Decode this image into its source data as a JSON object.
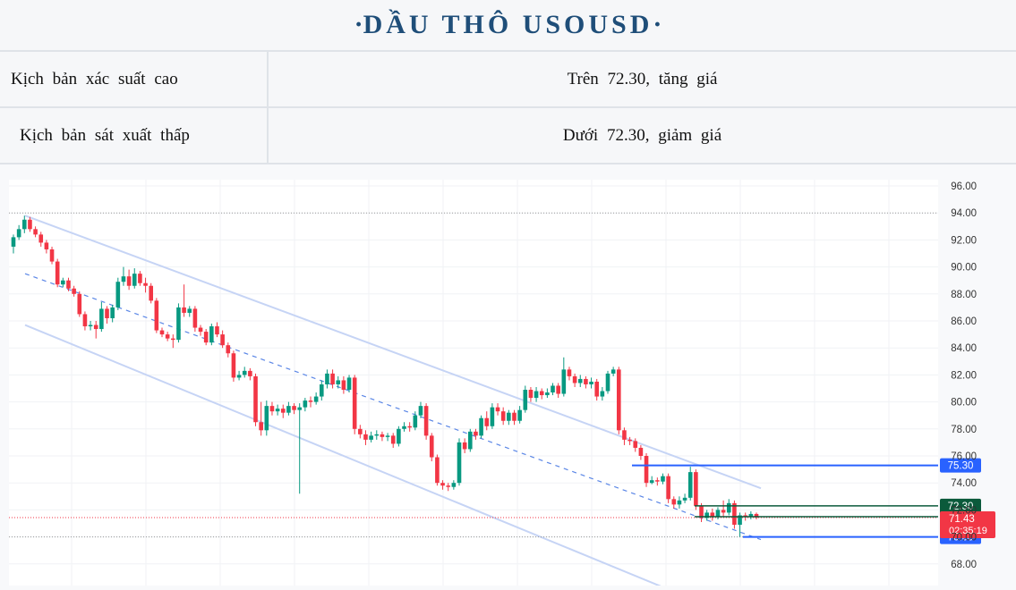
{
  "header": {
    "title": "DẦU THÔ USOUSD"
  },
  "scenarios": [
    {
      "label": "Kịch bản xác suất cao",
      "value": "Trên 72.30, tăng giá"
    },
    {
      "label": "Kịch bản sát xuất thấp",
      "value": "Dưới 72.30, giảm giá"
    }
  ],
  "chart_data": {
    "type": "candlestick",
    "ylim": [
      67,
      97
    ],
    "y_ticks": [
      "96.00",
      "94.00",
      "92.00",
      "90.00",
      "88.00",
      "86.00",
      "84.00",
      "82.00",
      "80.00",
      "78.00",
      "76.00",
      "74.00",
      "72.00",
      "70.00",
      "68.00"
    ],
    "candles": [
      [
        91.5,
        92.2,
        91.0,
        92.4
      ],
      [
        92.2,
        92.8,
        92.0,
        93.1
      ],
      [
        92.8,
        93.5,
        92.5,
        93.8
      ],
      [
        93.5,
        92.8,
        92.6,
        93.7
      ],
      [
        92.8,
        92.4,
        92.2,
        93.0
      ],
      [
        92.4,
        91.8,
        91.5,
        92.6
      ],
      [
        91.8,
        91.3,
        91.0,
        92.0
      ],
      [
        91.3,
        90.4,
        90.2,
        91.5
      ],
      [
        90.4,
        88.7,
        88.5,
        90.6
      ],
      [
        88.7,
        89.0,
        88.5,
        89.2
      ],
      [
        89.0,
        88.4,
        88.2,
        89.2
      ],
      [
        88.4,
        88.0,
        87.8,
        88.6
      ],
      [
        88.0,
        86.5,
        86.3,
        88.2
      ],
      [
        86.5,
        85.6,
        85.3,
        86.7
      ],
      [
        85.6,
        85.7,
        85.3,
        86.0
      ],
      [
        85.7,
        85.4,
        84.7,
        86.0
      ],
      [
        85.4,
        86.9,
        85.2,
        87.4
      ],
      [
        86.9,
        86.2,
        85.8,
        87.1
      ],
      [
        86.2,
        87.0,
        85.9,
        87.2
      ],
      [
        87.0,
        88.9,
        86.8,
        89.2
      ],
      [
        88.9,
        89.3,
        88.6,
        90.0
      ],
      [
        89.3,
        88.6,
        88.3,
        89.8
      ],
      [
        88.6,
        89.5,
        88.4,
        89.9
      ],
      [
        89.5,
        88.8,
        88.6,
        89.7
      ],
      [
        88.8,
        88.6,
        88.1,
        89.2
      ],
      [
        88.6,
        87.5,
        87.3,
        88.8
      ],
      [
        87.5,
        85.3,
        85.1,
        87.7
      ],
      [
        85.3,
        85.0,
        84.8,
        85.5
      ],
      [
        85.0,
        84.7,
        84.5,
        85.2
      ],
      [
        84.7,
        84.6,
        84.0,
        85.0
      ],
      [
        84.6,
        87.0,
        84.4,
        87.3
      ],
      [
        87.0,
        86.6,
        86.3,
        88.7
      ],
      [
        86.6,
        86.9,
        86.3,
        87.1
      ],
      [
        86.9,
        85.5,
        85.2,
        87.1
      ],
      [
        85.5,
        85.2,
        84.9,
        85.7
      ],
      [
        85.2,
        84.4,
        84.2,
        85.4
      ],
      [
        84.4,
        85.6,
        84.2,
        85.8
      ],
      [
        85.6,
        85.0,
        84.8,
        85.9
      ],
      [
        85.0,
        84.2,
        84.0,
        85.3
      ],
      [
        84.2,
        83.6,
        83.3,
        84.4
      ],
      [
        83.6,
        81.8,
        81.5,
        83.8
      ],
      [
        81.8,
        82.0,
        81.6,
        82.3
      ],
      [
        82.0,
        82.3,
        81.8,
        82.6
      ],
      [
        82.3,
        81.9,
        81.6,
        82.5
      ],
      [
        81.9,
        78.5,
        78.2,
        82.1
      ],
      [
        78.5,
        77.9,
        77.5,
        80.0
      ],
      [
        77.9,
        79.7,
        77.5,
        80.1
      ],
      [
        79.7,
        79.3,
        79.0,
        80.0
      ],
      [
        79.3,
        79.5,
        79.0,
        79.8
      ],
      [
        79.5,
        79.2,
        78.8,
        79.8
      ],
      [
        79.2,
        79.7,
        79.0,
        80.0
      ],
      [
        79.7,
        79.4,
        79.1,
        79.9
      ],
      [
        79.4,
        79.6,
        73.2,
        79.9
      ],
      [
        79.6,
        80.1,
        79.3,
        80.3
      ],
      [
        80.1,
        80.0,
        79.6,
        80.4
      ],
      [
        80.0,
        80.4,
        79.8,
        80.7
      ],
      [
        80.4,
        81.3,
        80.1,
        81.6
      ],
      [
        81.3,
        82.1,
        81.0,
        82.4
      ],
      [
        82.1,
        81.3,
        81.0,
        82.4
      ],
      [
        81.3,
        81.6,
        81.0,
        81.9
      ],
      [
        81.6,
        80.9,
        80.6,
        81.9
      ],
      [
        80.9,
        81.8,
        80.7,
        82.0
      ],
      [
        81.8,
        78.0,
        77.6,
        82.0
      ],
      [
        78.0,
        77.6,
        77.3,
        78.3
      ],
      [
        77.6,
        77.2,
        76.8,
        77.9
      ],
      [
        77.2,
        77.5,
        77.0,
        77.8
      ],
      [
        77.5,
        77.6,
        77.2,
        77.9
      ],
      [
        77.6,
        77.4,
        77.1,
        77.8
      ],
      [
        77.4,
        77.5,
        77.1,
        77.7
      ],
      [
        77.5,
        76.9,
        76.6,
        77.7
      ],
      [
        76.9,
        78.0,
        76.7,
        78.2
      ],
      [
        78.0,
        78.2,
        77.8,
        78.5
      ],
      [
        78.2,
        78.1,
        77.8,
        78.5
      ],
      [
        78.1,
        79.0,
        77.9,
        79.3
      ],
      [
        79.0,
        79.7,
        78.8,
        80.0
      ],
      [
        79.7,
        77.5,
        77.2,
        79.9
      ],
      [
        77.5,
        75.9,
        75.6,
        77.7
      ],
      [
        75.9,
        74.0,
        73.8,
        76.1
      ],
      [
        74.0,
        73.8,
        73.5,
        74.2
      ],
      [
        73.8,
        73.7,
        73.4,
        74.0
      ],
      [
        73.7,
        74.0,
        73.5,
        74.2
      ],
      [
        74.0,
        77.0,
        73.8,
        77.3
      ],
      [
        77.0,
        76.5,
        76.2,
        77.3
      ],
      [
        76.5,
        77.8,
        76.3,
        78.0
      ],
      [
        77.8,
        77.5,
        77.2,
        78.0
      ],
      [
        77.5,
        78.8,
        77.3,
        79.0
      ],
      [
        78.8,
        78.2,
        77.9,
        79.3
      ],
      [
        78.2,
        79.6,
        78.0,
        79.9
      ],
      [
        79.6,
        79.3,
        79.0,
        79.9
      ],
      [
        79.3,
        78.6,
        78.3,
        79.6
      ],
      [
        78.6,
        79.2,
        78.3,
        79.4
      ],
      [
        79.2,
        78.6,
        78.3,
        79.4
      ],
      [
        78.6,
        79.4,
        78.4,
        79.7
      ],
      [
        79.4,
        80.9,
        79.2,
        81.2
      ],
      [
        80.9,
        80.3,
        80.0,
        81.1
      ],
      [
        80.3,
        80.8,
        80.0,
        81.1
      ],
      [
        80.8,
        80.5,
        80.2,
        81.0
      ],
      [
        80.5,
        80.7,
        80.3,
        81.0
      ],
      [
        80.7,
        81.2,
        80.5,
        81.4
      ],
      [
        81.2,
        80.6,
        80.3,
        81.4
      ],
      [
        80.6,
        82.4,
        80.4,
        83.3
      ],
      [
        82.4,
        81.9,
        81.6,
        82.6
      ],
      [
        81.9,
        81.4,
        81.1,
        82.1
      ],
      [
        81.4,
        81.7,
        81.1,
        82.0
      ],
      [
        81.7,
        81.3,
        81.0,
        81.9
      ],
      [
        81.3,
        81.5,
        81.0,
        81.8
      ],
      [
        81.5,
        80.4,
        80.1,
        81.7
      ],
      [
        80.4,
        80.8,
        80.1,
        81.1
      ],
      [
        80.8,
        82.1,
        80.6,
        82.3
      ],
      [
        82.1,
        82.4,
        81.9,
        82.6
      ],
      [
        82.4,
        77.9,
        77.6,
        82.6
      ],
      [
        77.9,
        77.2,
        76.8,
        78.1
      ],
      [
        77.2,
        77.1,
        76.8,
        77.4
      ],
      [
        77.1,
        76.6,
        76.3,
        77.3
      ],
      [
        76.6,
        76.0,
        75.7,
        76.8
      ],
      [
        76.0,
        74.0,
        73.7,
        76.2
      ],
      [
        74.0,
        74.2,
        73.9,
        74.5
      ],
      [
        74.2,
        74.1,
        73.8,
        74.4
      ],
      [
        74.1,
        74.5,
        73.9,
        74.7
      ],
      [
        74.5,
        72.8,
        72.5,
        74.7
      ],
      [
        72.8,
        72.4,
        72.1,
        73.0
      ],
      [
        72.4,
        72.7,
        72.1,
        73.0
      ],
      [
        72.7,
        72.9,
        72.5,
        73.2
      ],
      [
        72.9,
        74.8,
        72.7,
        75.2
      ],
      [
        74.8,
        72.3,
        72.0,
        75.0
      ],
      [
        72.3,
        71.4,
        71.1,
        72.5
      ],
      [
        71.4,
        71.8,
        71.2,
        72.0
      ],
      [
        71.8,
        71.5,
        71.2,
        72.1
      ],
      [
        71.5,
        72.0,
        71.3,
        72.2
      ],
      [
        72.0,
        71.8,
        71.5,
        72.7
      ],
      [
        71.8,
        72.5,
        71.6,
        72.8
      ],
      [
        72.5,
        70.9,
        70.6,
        72.7
      ],
      [
        70.9,
        71.6,
        70.0,
        71.8
      ],
      [
        71.6,
        71.5,
        71.2,
        71.8
      ],
      [
        71.5,
        71.7,
        71.3,
        71.9
      ],
      [
        71.7,
        71.43,
        71.3,
        71.8
      ]
    ],
    "price_levels": [
      {
        "label": "75.30",
        "value": 75.3,
        "color": "#2962ff"
      },
      {
        "label": "72.30",
        "value": 72.3,
        "color": "#0b5a3b"
      },
      {
        "label": "71.50",
        "value": 71.5,
        "color": "#0b5a3b"
      },
      {
        "label": "70.00",
        "value": 70.0,
        "color": "#2962ff"
      }
    ],
    "last_price": {
      "label": "71.43",
      "countdown": "02:35:19",
      "value": 71.43,
      "color": "#f23645"
    },
    "reference_lines": [
      94.0,
      70.0
    ],
    "channel": {
      "upper": [
        93.8,
        73.6
      ],
      "mid": [
        89.5,
        69.8
      ],
      "lower": [
        85.7,
        65.2
      ]
    },
    "colors": {
      "up": "#089981",
      "down": "#f23645"
    }
  }
}
